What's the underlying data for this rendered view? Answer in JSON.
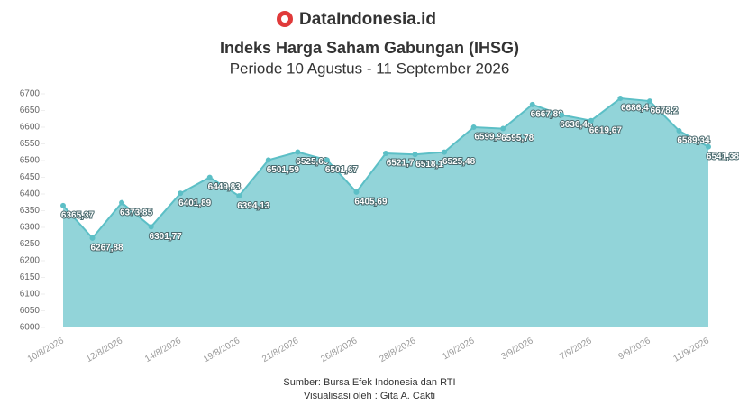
{
  "brand": "DataIndonesia.id",
  "chart_data": {
    "type": "area",
    "title": "Indeks Harga Saham Gabungan (IHSG)",
    "subtitle": "Periode 10 Agustus - 11 September 2026",
    "categories": [
      "10/8/2026",
      null,
      "12/8/2026",
      null,
      "14/8/2026",
      null,
      "19/8/2026",
      null,
      "21/8/2026",
      null,
      "26/8/2026",
      null,
      "28/8/2026",
      null,
      "1/9/2026",
      null,
      "3/9/2026",
      null,
      "7/9/2026",
      null,
      "9/9/2026",
      null,
      "11/9/2026"
    ],
    "values": [
      6365.37,
      6267.88,
      6373.85,
      6301.77,
      6401.89,
      6449.83,
      6394.13,
      6501.59,
      6525.69,
      6501.67,
      6405.69,
      6521.7,
      6518.1,
      6525.48,
      6599.9,
      6595.78,
      6667.89,
      6636.48,
      6619.67,
      6686.4,
      6678.2,
      6589.34,
      6541.38
    ],
    "value_labels": [
      "6365,37",
      "6267,88",
      "6373,85",
      "6301,77",
      "6401,89",
      "6449,83",
      "6394,13",
      "6501,59",
      "6525,69",
      "6501,67",
      "6405,69",
      "6521,7",
      "6518,1",
      "6525,48",
      "6599,9",
      "6595,78",
      "6667,89",
      "6636,48",
      "6619,67",
      "6686,4",
      "6678,2",
      "6589,34",
      "6541,38"
    ],
    "color": "#5cbfc6",
    "fill_color": "#92d4d9",
    "ylim": [
      6000,
      6700
    ],
    "yticks": [
      6000,
      6050,
      6100,
      6150,
      6200,
      6250,
      6300,
      6350,
      6400,
      6450,
      6500,
      6550,
      6600,
      6650,
      6700
    ],
    "notes": [
      "Sumber: Bursa Efek Indonesia dan RTI",
      "Visualisasi oleh : Gita A. Cakti"
    ]
  }
}
